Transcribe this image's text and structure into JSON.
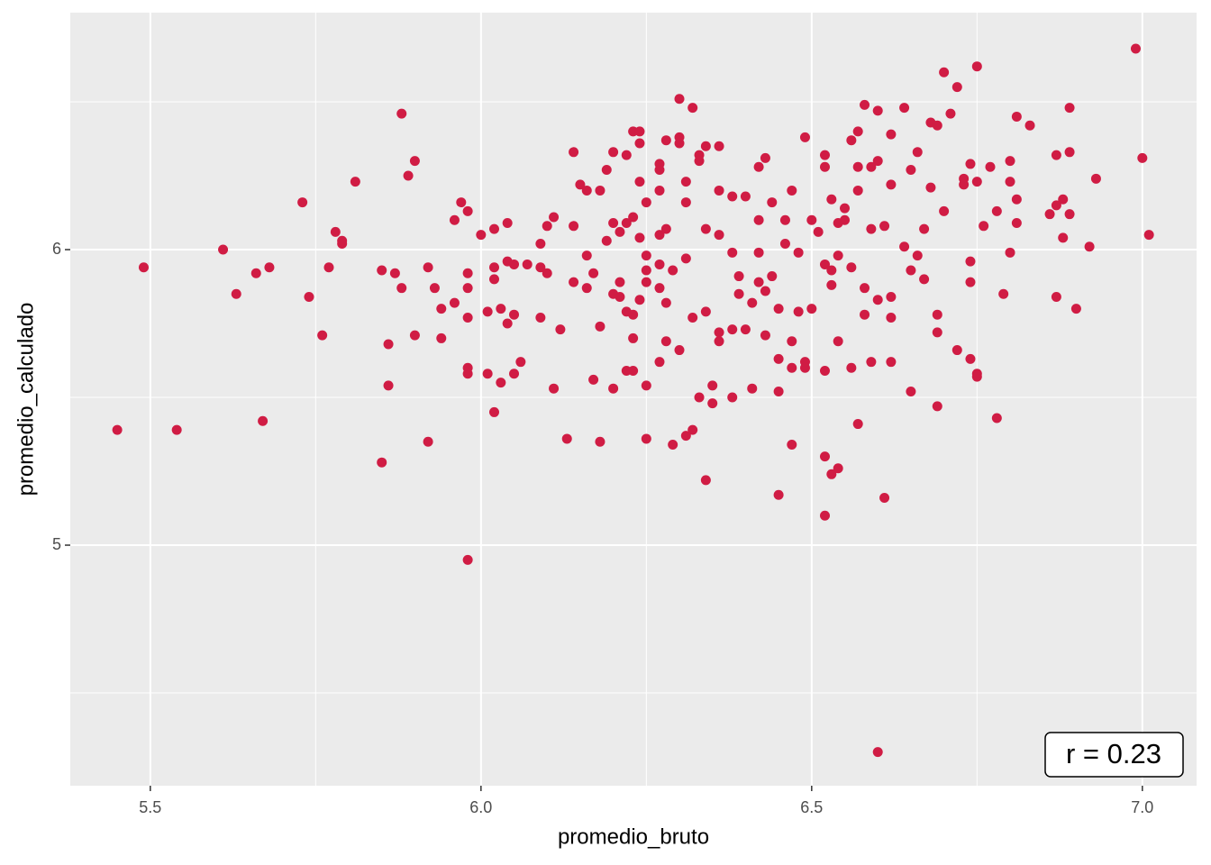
{
  "chart_data": {
    "type": "scatter",
    "xlabel": "promedio_bruto",
    "ylabel": "promedio_calculado",
    "annotation": "r = 0.23",
    "color": "#d01c44",
    "xlim": [
      5.379,
      7.082
    ],
    "ylim": [
      4.186,
      6.802
    ],
    "xticks": [
      5.5,
      {
        "value": 6,
        "label": "6.0"
      },
      6.5,
      {
        "value": 7,
        "label": "7.0"
      }
    ],
    "yticks": [
      5,
      6
    ],
    "grid": true,
    "x": [
      5.45,
      5.49,
      5.54,
      5.61,
      5.63,
      5.66,
      5.68,
      5.67,
      5.73,
      5.74,
      5.76,
      5.77,
      5.78,
      5.79,
      5.79,
      5.81,
      5.85,
      5.85,
      5.86,
      5.86,
      5.87,
      5.88,
      5.88,
      5.89,
      5.9,
      5.9,
      5.92,
      5.92,
      5.93,
      5.94,
      5.94,
      5.96,
      5.96,
      5.97,
      5.98,
      5.98,
      5.98,
      5.98,
      5.98,
      5.98,
      5.98,
      6.0,
      6.01,
      6.01,
      6.02,
      6.02,
      6.02,
      6.02,
      6.03,
      6.03,
      6.04,
      6.04,
      6.04,
      6.05,
      6.05,
      6.05,
      6.06,
      6.07,
      6.09,
      6.09,
      6.09,
      6.1,
      6.1,
      6.11,
      6.11,
      6.12,
      6.13,
      6.14,
      6.14,
      6.14,
      6.15,
      6.16,
      6.16,
      6.16,
      6.17,
      6.17,
      6.18,
      6.18,
      6.18,
      6.19,
      6.19,
      6.2,
      6.2,
      6.2,
      6.2,
      6.21,
      6.21,
      6.21,
      6.22,
      6.22,
      6.22,
      6.22,
      6.23,
      6.23,
      6.23,
      6.23,
      6.23,
      6.24,
      6.24,
      6.24,
      6.24,
      6.24,
      6.25,
      6.25,
      6.25,
      6.25,
      6.25,
      6.25,
      6.27,
      6.27,
      6.27,
      6.27,
      6.27,
      6.27,
      6.27,
      6.28,
      6.28,
      6.28,
      6.28,
      6.29,
      6.29,
      6.3,
      6.3,
      6.3,
      6.3,
      6.31,
      6.31,
      6.31,
      6.31,
      6.32,
      6.32,
      6.32,
      6.33,
      6.33,
      6.33,
      6.34,
      6.34,
      6.34,
      6.34,
      6.35,
      6.35,
      6.36,
      6.36,
      6.36,
      6.36,
      6.36,
      6.38,
      6.38,
      6.38,
      6.38,
      6.39,
      6.39,
      6.4,
      6.4,
      6.41,
      6.41,
      6.42,
      6.42,
      6.42,
      6.42,
      6.43,
      6.43,
      6.43,
      6.44,
      6.44,
      6.45,
      6.45,
      6.45,
      6.45,
      6.46,
      6.46,
      6.47,
      6.47,
      6.47,
      6.47,
      6.48,
      6.48,
      6.49,
      6.49,
      6.49,
      6.5,
      6.5,
      6.51,
      6.52,
      6.52,
      6.52,
      6.52,
      6.52,
      6.52,
      6.53,
      6.53,
      6.53,
      6.53,
      6.54,
      6.54,
      6.54,
      6.54,
      6.55,
      6.55,
      6.56,
      6.56,
      6.56,
      6.57,
      6.57,
      6.57,
      6.57,
      6.58,
      6.58,
      6.58,
      6.59,
      6.59,
      6.59,
      6.6,
      6.6,
      6.6,
      6.6,
      6.61,
      6.61,
      6.62,
      6.62,
      6.62,
      6.62,
      6.62,
      6.64,
      6.64,
      6.65,
      6.65,
      6.65,
      6.66,
      6.66,
      6.67,
      6.67,
      6.68,
      6.68,
      6.69,
      6.69,
      6.69,
      6.69,
      6.7,
      6.7,
      6.71,
      6.72,
      6.72,
      6.73,
      6.73,
      6.74,
      6.74,
      6.74,
      6.74,
      6.75,
      6.75,
      6.75,
      6.75,
      6.76,
      6.77,
      6.78,
      6.78,
      6.79,
      6.8,
      6.8,
      6.8,
      6.81,
      6.81,
      6.81,
      6.83,
      6.86,
      6.87,
      6.87,
      6.88,
      6.88,
      6.89,
      6.89,
      6.89,
      6.9,
      6.92,
      6.93,
      6.99,
      7.0,
      7.01,
      6.87
    ],
    "values": [
      5.39,
      5.94,
      5.39,
      6.0,
      5.85,
      5.92,
      5.94,
      5.42,
      6.16,
      5.84,
      5.71,
      5.94,
      6.06,
      6.03,
      6.02,
      6.23,
      5.28,
      5.93,
      5.68,
      5.54,
      5.92,
      6.46,
      5.87,
      6.25,
      6.3,
      5.71,
      5.94,
      5.35,
      5.87,
      5.8,
      5.7,
      6.1,
      5.82,
      6.16,
      5.92,
      5.6,
      5.58,
      6.13,
      5.87,
      5.77,
      4.95,
      6.05,
      5.58,
      5.79,
      5.45,
      5.94,
      6.07,
      5.9,
      5.8,
      5.55,
      6.09,
      5.96,
      5.75,
      5.58,
      5.78,
      5.95,
      5.62,
      5.95,
      5.77,
      6.02,
      5.94,
      5.92,
      6.08,
      5.53,
      6.11,
      5.73,
      5.36,
      6.33,
      5.89,
      6.08,
      6.22,
      5.87,
      6.2,
      5.98,
      5.92,
      5.56,
      5.74,
      5.35,
      6.2,
      6.27,
      6.03,
      6.09,
      5.85,
      6.33,
      5.53,
      5.89,
      6.06,
      5.84,
      6.09,
      5.79,
      6.32,
      5.59,
      5.78,
      6.11,
      6.4,
      5.7,
      5.59,
      6.23,
      6.04,
      5.83,
      6.36,
      6.4,
      5.54,
      5.36,
      5.93,
      5.89,
      6.16,
      5.98,
      6.05,
      5.62,
      6.2,
      5.87,
      6.27,
      5.95,
      6.29,
      5.82,
      5.69,
      6.37,
      6.07,
      5.93,
      5.34,
      6.36,
      6.38,
      6.51,
      5.66,
      5.97,
      5.37,
      6.16,
      6.23,
      5.77,
      6.48,
      5.39,
      5.5,
      6.3,
      6.32,
      5.79,
      5.22,
      6.35,
      6.07,
      5.54,
      5.48,
      6.2,
      6.05,
      6.35,
      5.72,
      5.69,
      6.18,
      5.99,
      5.73,
      5.5,
      5.85,
      5.91,
      5.73,
      6.18,
      5.82,
      5.53,
      6.28,
      6.1,
      5.89,
      5.99,
      5.86,
      6.31,
      5.71,
      5.91,
      6.16,
      5.8,
      5.63,
      5.52,
      5.17,
      6.1,
      6.02,
      5.69,
      5.6,
      6.2,
      5.34,
      5.79,
      5.99,
      5.6,
      6.38,
      5.62,
      6.1,
      5.8,
      6.06,
      5.3,
      5.95,
      6.32,
      6.28,
      5.1,
      5.59,
      6.17,
      5.93,
      5.24,
      5.88,
      5.26,
      6.09,
      5.98,
      5.69,
      6.14,
      6.1,
      6.37,
      5.6,
      5.94,
      6.2,
      5.41,
      6.28,
      6.4,
      6.49,
      5.87,
      5.78,
      6.28,
      6.07,
      5.62,
      6.3,
      4.3,
      5.83,
      6.47,
      6.08,
      5.16,
      5.84,
      6.22,
      6.39,
      5.62,
      5.77,
      6.48,
      6.01,
      6.27,
      5.93,
      5.52,
      5.98,
      6.33,
      5.9,
      6.07,
      6.43,
      6.21,
      6.42,
      5.47,
      5.72,
      5.78,
      6.13,
      6.6,
      6.46,
      6.55,
      5.66,
      6.22,
      6.24,
      6.29,
      5.63,
      5.96,
      5.89,
      5.57,
      6.62,
      6.23,
      5.58,
      6.08,
      6.28,
      5.43,
      6.13,
      5.85,
      6.23,
      5.99,
      6.3,
      6.09,
      6.45,
      6.17,
      6.42,
      6.12,
      6.32,
      5.84,
      6.17,
      6.04,
      6.12,
      6.48,
      6.33,
      5.8,
      6.01,
      6.24,
      6.68,
      6.31,
      6.05,
      6.15
    ]
  }
}
